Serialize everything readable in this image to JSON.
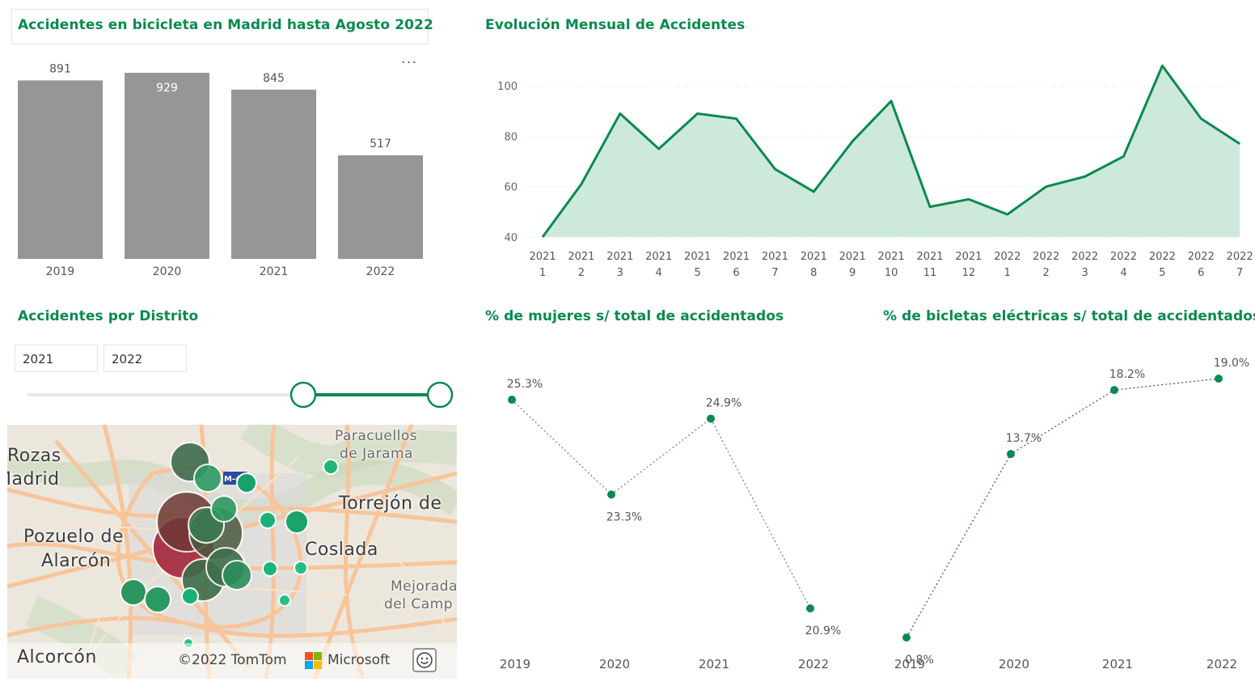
{
  "bar_panel": {
    "title": "Accidentes en bicicleta en Madrid hasta Agosto 2022",
    "more_label": "..."
  },
  "line_panel": {
    "title": "Evolución Mensual de Accidentes"
  },
  "district_panel": {
    "title": "Accidentes por Distrito",
    "slider_from": "2021",
    "slider_to": "2022"
  },
  "women_panel": {
    "title": "% de mujeres s/ total de accidentados"
  },
  "ebike_panel": {
    "title": "% de bicletas eléctricas s/ total de accidentados"
  },
  "map": {
    "labels": {
      "rozas": "Rozas",
      "madrid": "Madrid",
      "paracuellos": "Paracuellos",
      "de_jarama": "de Jarama",
      "torrejon": "Torrejón de",
      "pozuelo": "Pozuelo de",
      "alarcon": "Alarcón",
      "coslada": "Coslada",
      "mejorada": "Mejorada",
      "del_campo": "del Camp",
      "alcorcon": "Alcorcón",
      "road_badge": "M-40"
    },
    "copyright": "©2022 TomTom",
    "microsoft": "Microsoft",
    "feedback_icon": "smiley-icon"
  },
  "colors": {
    "accent": "#0a8a4f",
    "bar": "#969696",
    "area_fill": "#cde9dc"
  },
  "chart_data": [
    {
      "type": "bar",
      "title": "Accidentes en bicicleta en Madrid hasta Agosto 2022",
      "categories": [
        "2019",
        "2020",
        "2021",
        "2022"
      ],
      "values": [
        891,
        929,
        845,
        517
      ],
      "value_labels": [
        "891",
        "929",
        "845",
        "517"
      ],
      "ylim": [
        0,
        929
      ]
    },
    {
      "type": "area",
      "title": "Evolución Mensual de Accidentes",
      "x_labels": [
        [
          "2021",
          "1"
        ],
        [
          "2021",
          "2"
        ],
        [
          "2021",
          "3"
        ],
        [
          "2021",
          "4"
        ],
        [
          "2021",
          "5"
        ],
        [
          "2021",
          "6"
        ],
        [
          "2021",
          "7"
        ],
        [
          "2021",
          "8"
        ],
        [
          "2021",
          "9"
        ],
        [
          "2021",
          "10"
        ],
        [
          "2021",
          "11"
        ],
        [
          "2021",
          "12"
        ],
        [
          "2022",
          "1"
        ],
        [
          "2022",
          "2"
        ],
        [
          "2022",
          "3"
        ],
        [
          "2022",
          "4"
        ],
        [
          "2022",
          "5"
        ],
        [
          "2022",
          "6"
        ],
        [
          "2022",
          "7"
        ]
      ],
      "values": [
        40,
        61,
        89,
        75,
        89,
        87,
        67,
        58,
        78,
        94,
        52,
        55,
        49,
        60,
        64,
        72,
        108,
        87,
        77
      ],
      "y_ticks": [
        40,
        60,
        80,
        100
      ],
      "ylim": [
        40,
        110
      ],
      "grid": true
    },
    {
      "type": "line",
      "title": "% de mujeres s/ total de accidentados",
      "categories": [
        "2019",
        "2020",
        "2021",
        "2022"
      ],
      "values": [
        25.3,
        23.3,
        24.9,
        20.9
      ],
      "value_labels": [
        "25.3%",
        "23.3%",
        "24.9%",
        "20.9%"
      ]
    },
    {
      "type": "line",
      "title": "% de bicletas eléctricas s/ total de accidentados",
      "categories": [
        "2019",
        "2020",
        "2021",
        "2022"
      ],
      "values": [
        0.8,
        13.7,
        18.2,
        19.0
      ],
      "value_labels": [
        "0.8%",
        "13.7%",
        "18.2%",
        "19.0%"
      ]
    }
  ]
}
